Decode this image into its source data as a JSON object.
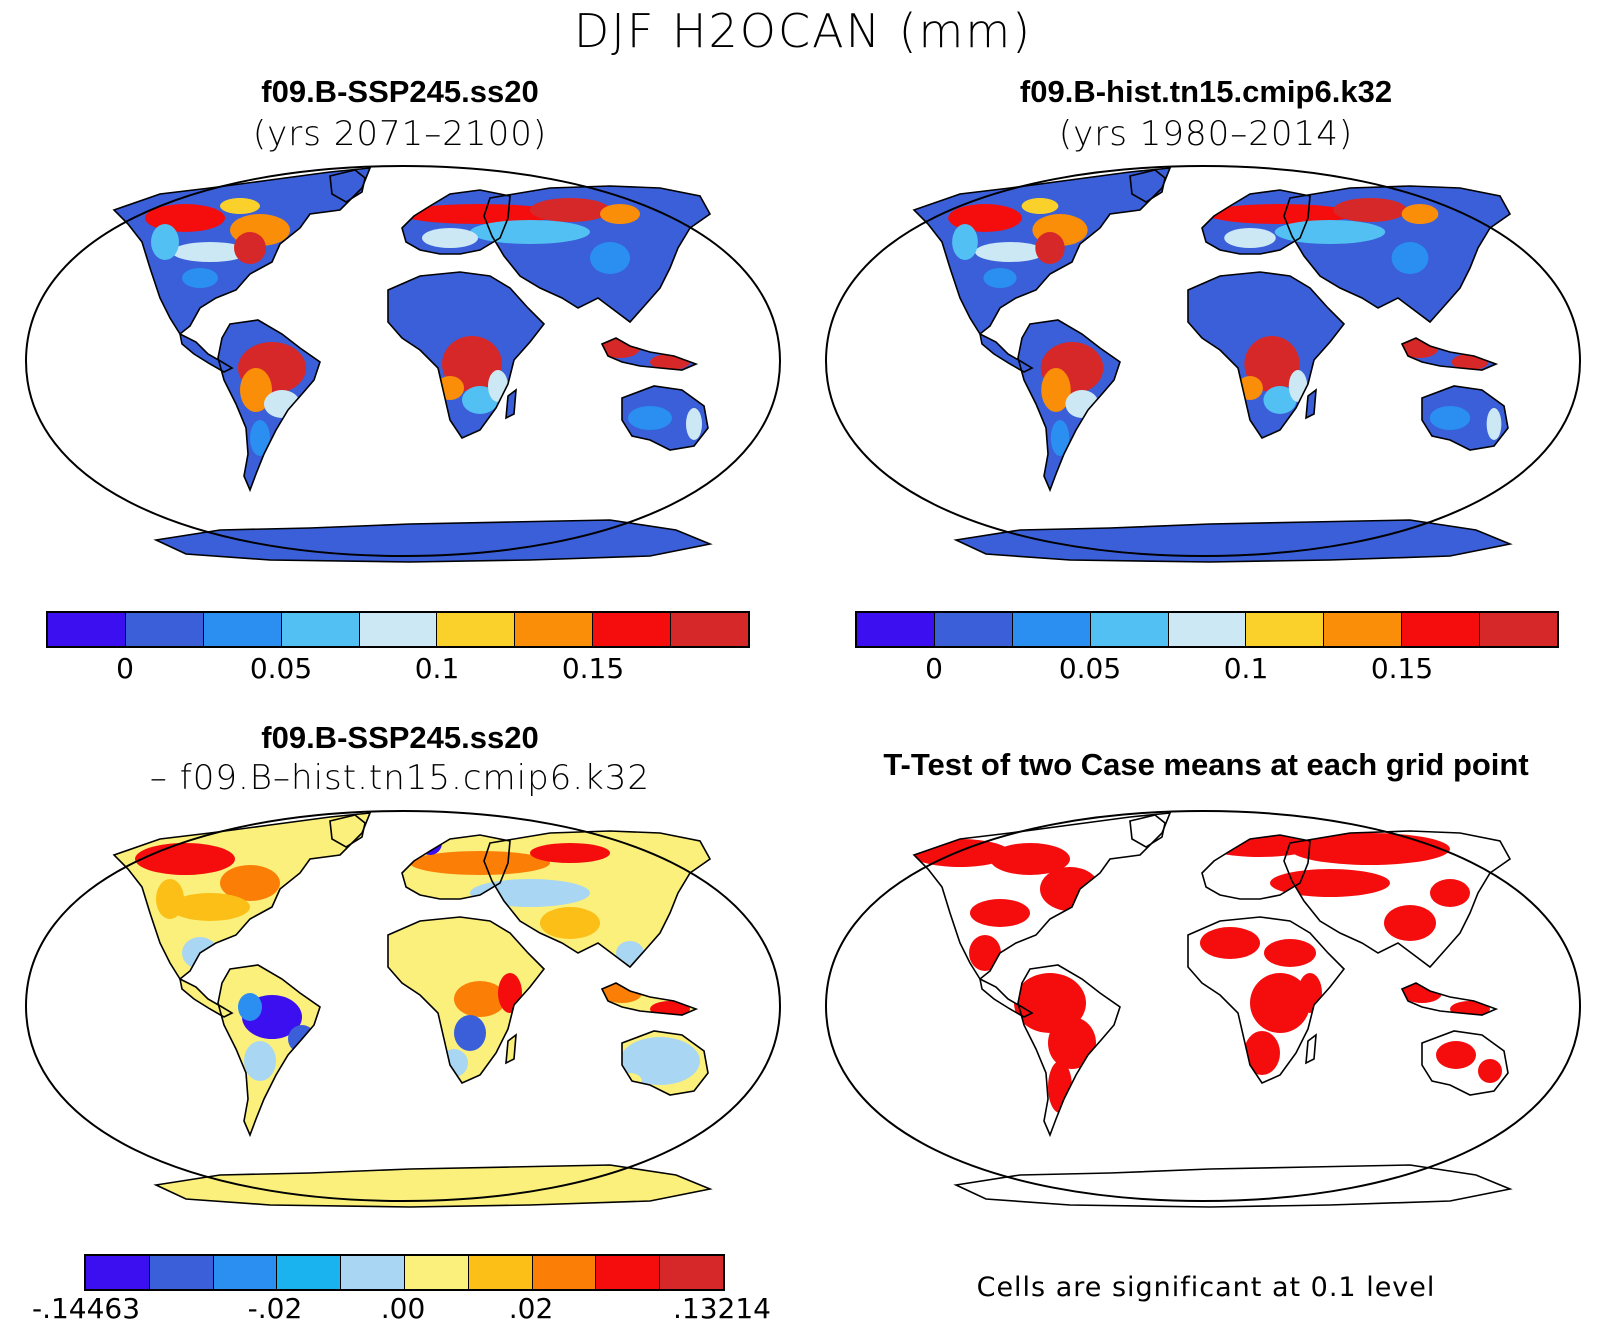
{
  "figure": {
    "title": "DJF H2OCAN (mm)"
  },
  "panels": {
    "top_left": {
      "title": "f09.B-SSP245.ss20",
      "subtitle": "(yrs 2071–2100)"
    },
    "top_right": {
      "title": "f09.B-hist.tn15.cmip6.k32",
      "subtitle": "(yrs 1980–2014)"
    },
    "bottom_left": {
      "title": "f09.B-SSP245.ss20",
      "subtitle": "– f09.B–hist.tn15.cmip6.k32"
    },
    "bottom_right": {
      "title": "T-Test of two Case means at each grid point",
      "note": "Cells are significant at 0.1 level"
    }
  },
  "colorbars": {
    "mean": {
      "colors": [
        "#3b0ff0",
        "#3a5fd9",
        "#2a8ff0",
        "#52c0f2",
        "#cde8f5",
        "#fad12a",
        "#fa8e09",
        "#f50d0d",
        "#d62828"
      ],
      "labels": [
        "0",
        "0.05",
        "0.1",
        "0.15"
      ]
    },
    "diff": {
      "colors": [
        "#3b0ff0",
        "#3a5fd9",
        "#2a8ff0",
        "#1ab3f0",
        "#a9d6f2",
        "#fbf07c",
        "#fbbf17",
        "#fb7f07",
        "#f50d0d",
        "#d62828"
      ],
      "labels": [
        "-.14463",
        "-.02",
        ".00",
        ".02",
        ".13214"
      ]
    }
  },
  "map_colors": {
    "land_base_mean": "#3a5fd9",
    "land_base_diff": "#fbf07c",
    "land_base_ttest": "#ffffff",
    "significant": "#f50d0d"
  }
}
